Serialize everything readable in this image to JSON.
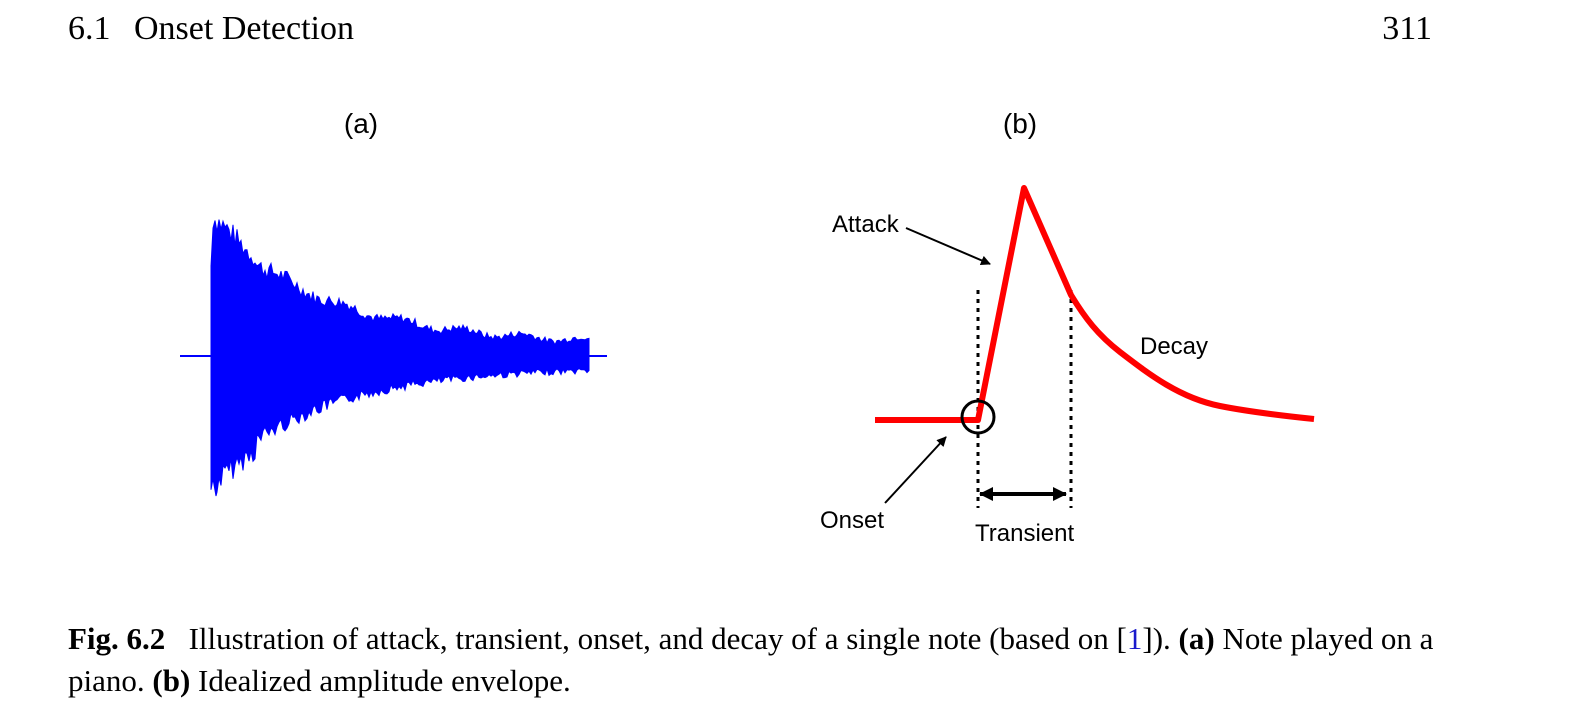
{
  "header": {
    "section_number": "6.1",
    "section_title": "Onset Detection",
    "page_number": "311"
  },
  "figure": {
    "panel_a_label": "(a)",
    "panel_b_label": "(b)",
    "colors": {
      "waveform": "#0000ff",
      "envelope": "#ff0000",
      "annotation": "#000000"
    },
    "annotations": {
      "attack": "Attack",
      "decay": "Decay",
      "onset": "Onset",
      "transient": "Transient"
    }
  },
  "caption": {
    "label": "Fig. 6.2",
    "text_1": "Illustration of attack, transient, onset, and decay of a single note (based on [",
    "ref": "1",
    "text_2": "]).",
    "a_label": "(a)",
    "a_text": "Note played on a piano.",
    "b_label": "(b)",
    "b_text": "Idealized amplitude envelope."
  }
}
